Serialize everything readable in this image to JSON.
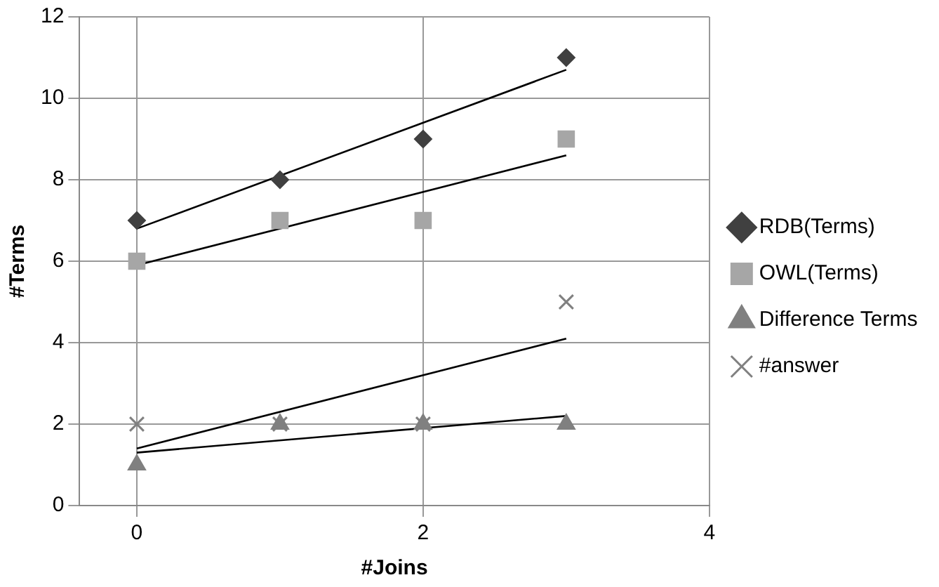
{
  "chart_data": {
    "type": "scatter",
    "xlabel": "#Joins",
    "ylabel": "#Terms",
    "xlim": [
      -0.4,
      4
    ],
    "xticks": [
      0,
      2,
      4
    ],
    "ylim": [
      0,
      12
    ],
    "yticks": [
      0,
      2,
      4,
      6,
      8,
      10,
      12
    ],
    "grid": true,
    "legend": "right",
    "series": [
      {
        "name": "RDB(Terms)",
        "color": "#404040",
        "marker": "diamond",
        "x": [
          0,
          1,
          2,
          3
        ],
        "values": [
          7,
          8,
          9,
          11
        ]
      },
      {
        "name": "OWL(Terms)",
        "color": "#a6a6a6",
        "marker": "square",
        "x": [
          0,
          1,
          2,
          3
        ],
        "values": [
          6,
          7,
          7,
          9
        ]
      },
      {
        "name": "Difference Terms",
        "color": "#808080",
        "marker": "triangle",
        "x": [
          0,
          1,
          2,
          3
        ],
        "values": [
          1,
          2,
          2,
          2
        ]
      },
      {
        "name": "#answer",
        "color": "#808080",
        "marker": "cross",
        "x": [
          0,
          1,
          2,
          3
        ],
        "values": [
          2,
          2,
          2,
          5
        ]
      },
      {
        "type": "line",
        "color": "#000000",
        "marker": "none",
        "x": [
          0,
          3
        ],
        "values": [
          6.8,
          10.7
        ]
      },
      {
        "type": "line",
        "color": "#000000",
        "marker": "none",
        "x": [
          0,
          3
        ],
        "values": [
          5.9,
          8.6
        ]
      },
      {
        "type": "line",
        "color": "#000000",
        "marker": "none",
        "x": [
          0,
          3
        ],
        "values": [
          1.3,
          2.2
        ]
      },
      {
        "type": "line",
        "color": "#000000",
        "marker": "none",
        "x": [
          0,
          3
        ],
        "values": [
          1.4,
          4.1
        ]
      }
    ]
  }
}
